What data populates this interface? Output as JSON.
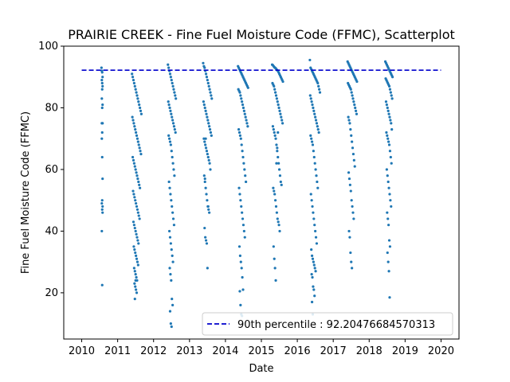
{
  "chart_data": {
    "type": "scatter",
    "title": "PRAIRIE CREEK - Fine Fuel Moisture Code (FFMC), Scatterplot",
    "xlabel": "Date",
    "ylabel": "Fine Fuel Moisture Code (FFMC)",
    "xlim": [
      2009.5,
      2020.5
    ],
    "ylim": [
      5,
      100
    ],
    "x_ticks": [
      "2010",
      "2011",
      "2012",
      "2013",
      "2014",
      "2015",
      "2016",
      "2017",
      "2018",
      "2019",
      "2020"
    ],
    "y_ticks": [
      20,
      40,
      60,
      80,
      100
    ],
    "grid": false,
    "legend_position": "lower-right",
    "point_color": "#1f77b4",
    "reference_line": {
      "label": "90th percentile : 92.20476684570313",
      "value": 92.20476684570313,
      "x_range": [
        2010,
        2020
      ],
      "color": "#0000cc",
      "style": "dashed"
    },
    "seasons": [
      {
        "year": 2010,
        "x": [
          2010.55,
          2010.56,
          2010.57,
          2010.58,
          2010.56,
          2010.57,
          2010.58,
          2010.57,
          2010.56,
          2010.58,
          2010.57,
          2010.56,
          2010.58,
          2010.57,
          2010.56,
          2010.57,
          2010.58,
          2010.57,
          2010.56,
          2010.58,
          2010.57,
          2010.58,
          2010.56,
          2010.57
        ],
        "y": [
          93,
          92,
          91.5,
          90,
          89,
          88,
          87,
          86,
          83,
          81,
          80,
          75,
          75,
          72,
          70,
          64,
          57,
          50,
          49,
          48,
          47,
          46,
          40,
          22.5
        ]
      },
      {
        "year": 2011,
        "x": [
          2011.4,
          2011.42,
          2011.44,
          2011.46,
          2011.48,
          2011.5,
          2011.52,
          2011.54,
          2011.56,
          2011.58,
          2011.6,
          2011.62,
          2011.64,
          2011.66,
          2011.41,
          2011.43,
          2011.45,
          2011.47,
          2011.49,
          2011.51,
          2011.53,
          2011.55,
          2011.57,
          2011.59,
          2011.61,
          2011.63,
          2011.65,
          2011.42,
          2011.44,
          2011.46,
          2011.48,
          2011.5,
          2011.52,
          2011.54,
          2011.56,
          2011.58,
          2011.6,
          2011.62,
          2011.43,
          2011.45,
          2011.47,
          2011.49,
          2011.51,
          2011.53,
          2011.55,
          2011.57,
          2011.59,
          2011.61,
          2011.44,
          2011.46,
          2011.48,
          2011.5,
          2011.52,
          2011.54,
          2011.56,
          2011.58,
          2011.45,
          2011.47,
          2011.49,
          2011.51,
          2011.53,
          2011.55,
          2011.57,
          2011.46,
          2011.48,
          2011.5,
          2011.52,
          2011.54,
          2011.47,
          2011.49,
          2011.51,
          2011.53,
          2011.48,
          2011.5
        ],
        "y": [
          91,
          90,
          89,
          88,
          87,
          86,
          85,
          84,
          83,
          82,
          81,
          80,
          79,
          78,
          77,
          76,
          75,
          74,
          73,
          72,
          71,
          70,
          69,
          68,
          67,
          66,
          65,
          64,
          63,
          62,
          61,
          60,
          59,
          58,
          57,
          56,
          55,
          54,
          53,
          52,
          51,
          50,
          49,
          48,
          47,
          46,
          45,
          44,
          43,
          42,
          41,
          40,
          39,
          38,
          37,
          36,
          35,
          34,
          33,
          32,
          31,
          30,
          29,
          28,
          27,
          26,
          25,
          24,
          23,
          22,
          21,
          20,
          18,
          24
        ]
      },
      {
        "year": 2012,
        "x": [
          2012.4,
          2012.42,
          2012.44,
          2012.46,
          2012.48,
          2012.5,
          2012.52,
          2012.54,
          2012.56,
          2012.58,
          2012.6,
          2012.62,
          2012.41,
          2012.43,
          2012.45,
          2012.47,
          2012.49,
          2012.51,
          2012.53,
          2012.55,
          2012.57,
          2012.59,
          2012.61,
          2012.42,
          2012.44,
          2012.46,
          2012.48,
          2012.5,
          2012.52,
          2012.54,
          2012.56,
          2012.58,
          2012.43,
          2012.45,
          2012.47,
          2012.49,
          2012.51,
          2012.53,
          2012.55,
          2012.57,
          2012.44,
          2012.46,
          2012.48,
          2012.5,
          2012.52,
          2012.54,
          2012.45,
          2012.47,
          2012.49,
          2012.51,
          2012.53,
          2012.46,
          2012.48,
          2012.5
        ],
        "y": [
          94,
          93,
          92,
          91,
          90,
          89,
          88,
          87,
          86,
          85,
          84,
          83,
          82,
          81,
          80,
          79,
          78,
          77,
          76,
          75,
          74,
          73,
          72,
          71,
          70,
          69,
          68,
          66,
          64,
          62,
          60,
          58,
          56,
          54,
          52,
          50,
          48,
          46,
          44,
          42,
          40,
          38,
          36,
          34,
          32,
          30,
          28,
          26,
          24,
          18,
          16,
          14,
          10,
          9
        ]
      },
      {
        "year": 2013,
        "x": [
          2013.38,
          2013.4,
          2013.42,
          2013.44,
          2013.46,
          2013.48,
          2013.5,
          2013.52,
          2013.54,
          2013.56,
          2013.58,
          2013.6,
          2013.62,
          2013.39,
          2013.41,
          2013.43,
          2013.45,
          2013.47,
          2013.49,
          2013.51,
          2013.53,
          2013.55,
          2013.57,
          2013.59,
          2013.61,
          2013.4,
          2013.42,
          2013.44,
          2013.46,
          2013.48,
          2013.5,
          2013.52,
          2013.54,
          2013.56,
          2013.58,
          2013.41,
          2013.43,
          2013.45,
          2013.47,
          2013.49,
          2013.51,
          2013.53,
          2013.55,
          2013.42,
          2013.44,
          2013.46,
          2013.48,
          2013.5,
          2013.52,
          2013.43,
          2013.45
        ],
        "y": [
          94.5,
          93.5,
          93,
          92,
          91,
          90,
          89,
          88,
          87,
          86,
          85,
          84,
          83,
          82,
          81,
          80,
          79,
          78,
          77,
          76,
          75,
          74,
          73,
          72,
          71,
          70,
          69,
          68,
          67,
          66,
          65,
          64,
          63,
          62,
          60,
          58,
          56,
          54,
          52,
          50,
          48,
          47,
          46,
          41,
          38,
          37,
          36,
          28,
          48,
          57,
          70
        ]
      },
      {
        "year": 2014,
        "x": [
          2014.35,
          2014.37,
          2014.39,
          2014.41,
          2014.43,
          2014.45,
          2014.47,
          2014.49,
          2014.51,
          2014.53,
          2014.55,
          2014.57,
          2014.59,
          2014.61,
          2014.63,
          2014.36,
          2014.38,
          2014.4,
          2014.42,
          2014.44,
          2014.46,
          2014.48,
          2014.5,
          2014.52,
          2014.54,
          2014.56,
          2014.58,
          2014.6,
          2014.62,
          2014.37,
          2014.39,
          2014.41,
          2014.43,
          2014.45,
          2014.47,
          2014.49,
          2014.51,
          2014.53,
          2014.55,
          2014.57,
          2014.38,
          2014.4,
          2014.42,
          2014.44,
          2014.46,
          2014.48,
          2014.5,
          2014.52,
          2014.54,
          2014.39,
          2014.41,
          2014.43,
          2014.45,
          2014.47,
          2014.49,
          2014.4,
          2014.42,
          2014.44,
          2014.46
        ],
        "y": [
          93.5,
          93,
          92.5,
          92,
          91.5,
          91,
          90.5,
          90,
          89.5,
          89,
          88.5,
          88,
          87.5,
          87,
          86.5,
          86,
          85.5,
          85,
          84,
          83,
          82,
          81,
          80,
          79,
          78,
          77,
          76,
          75,
          74,
          73,
          72,
          71,
          70,
          68,
          66,
          64,
          62,
          60,
          58,
          56,
          54,
          52,
          50,
          48,
          46,
          44,
          42,
          40,
          38,
          35,
          32,
          30,
          28,
          25,
          21,
          20.5,
          16,
          13,
          12.5
        ]
      },
      {
        "year": 2015,
        "x": [
          2015.3,
          2015.32,
          2015.34,
          2015.36,
          2015.38,
          2015.4,
          2015.42,
          2015.44,
          2015.46,
          2015.48,
          2015.5,
          2015.52,
          2015.54,
          2015.56,
          2015.58,
          2015.6,
          2015.31,
          2015.33,
          2015.35,
          2015.37,
          2015.39,
          2015.41,
          2015.43,
          2015.45,
          2015.47,
          2015.49,
          2015.51,
          2015.53,
          2015.55,
          2015.57,
          2015.59,
          2015.32,
          2015.34,
          2015.36,
          2015.38,
          2015.4,
          2015.42,
          2015.44,
          2015.46,
          2015.48,
          2015.5,
          2015.52,
          2015.54,
          2015.56,
          2015.33,
          2015.35,
          2015.37,
          2015.39,
          2015.41,
          2015.43,
          2015.45,
          2015.47,
          2015.49,
          2015.51,
          2015.34,
          2015.36,
          2015.38,
          2015.4,
          2015.42,
          2015.44,
          2015.46
        ],
        "y": [
          94,
          93.8,
          93.5,
          93.2,
          93,
          92.8,
          92.5,
          92.2,
          92,
          91.5,
          91,
          90.5,
          90,
          89.5,
          89,
          88.5,
          88,
          87.5,
          87,
          86,
          85,
          84,
          83,
          82,
          81,
          80,
          79,
          78,
          77,
          76,
          75,
          74,
          73,
          72,
          71,
          70,
          68,
          66,
          64,
          62,
          60,
          58,
          56,
          55,
          54,
          53,
          52,
          50,
          48,
          46,
          44,
          43,
          42,
          40,
          35,
          31,
          28,
          24,
          62,
          67,
          72
        ]
      },
      {
        "year": 2016,
        "x": [
          2016.35,
          2016.37,
          2016.39,
          2016.41,
          2016.43,
          2016.45,
          2016.47,
          2016.49,
          2016.51,
          2016.53,
          2016.55,
          2016.57,
          2016.59,
          2016.61,
          2016.63,
          2016.36,
          2016.38,
          2016.4,
          2016.42,
          2016.44,
          2016.46,
          2016.48,
          2016.5,
          2016.52,
          2016.54,
          2016.56,
          2016.58,
          2016.6,
          2016.37,
          2016.39,
          2016.41,
          2016.43,
          2016.45,
          2016.47,
          2016.49,
          2016.51,
          2016.53,
          2016.55,
          2016.57,
          2016.38,
          2016.4,
          2016.42,
          2016.44,
          2016.46,
          2016.48,
          2016.5,
          2016.52,
          2016.54,
          2016.39,
          2016.41,
          2016.43,
          2016.45,
          2016.47,
          2016.49,
          2016.51,
          2016.4,
          2016.42,
          2016.44,
          2016.46,
          2016.48,
          2016.41,
          2016.43
        ],
        "y": [
          95.5,
          93,
          92.5,
          92,
          91.5,
          91,
          90.5,
          90,
          89.5,
          89,
          88.5,
          88,
          87,
          86,
          85,
          84,
          83,
          82,
          81,
          80,
          79,
          78,
          77,
          76,
          75,
          74,
          73,
          72,
          71,
          70,
          69,
          68,
          66,
          64,
          62,
          60,
          58,
          56,
          54,
          52,
          50,
          48,
          46,
          44,
          42,
          40,
          38,
          36,
          34,
          32,
          31,
          30,
          29,
          28,
          27,
          26,
          25,
          22,
          21,
          19,
          17,
          13
        ]
      },
      {
        "year": 2017,
        "x": [
          2017.4,
          2017.42,
          2017.44,
          2017.46,
          2017.48,
          2017.5,
          2017.52,
          2017.54,
          2017.56,
          2017.58,
          2017.6,
          2017.62,
          2017.64,
          2017.66,
          2017.41,
          2017.43,
          2017.45,
          2017.47,
          2017.49,
          2017.51,
          2017.53,
          2017.55,
          2017.57,
          2017.59,
          2017.61,
          2017.63,
          2017.65,
          2017.42,
          2017.44,
          2017.46,
          2017.48,
          2017.5,
          2017.52,
          2017.54,
          2017.56,
          2017.58,
          2017.6,
          2017.43,
          2017.45,
          2017.47,
          2017.49,
          2017.51,
          2017.53,
          2017.55,
          2017.57,
          2017.44,
          2017.46,
          2017.48,
          2017.5,
          2017.52
        ],
        "y": [
          95,
          94.5,
          94,
          93.5,
          93,
          92.5,
          92,
          91.5,
          91,
          90.5,
          90,
          89.5,
          89,
          88.5,
          88,
          87.5,
          87,
          86.5,
          86,
          85,
          84,
          83,
          82,
          81,
          80,
          79,
          78,
          77,
          76,
          75,
          73,
          71,
          69,
          67,
          65,
          63,
          61,
          59,
          57,
          55,
          53,
          50,
          48,
          46,
          44,
          40,
          38,
          33,
          30,
          28
        ]
      },
      {
        "year": 2018,
        "x": [
          2018.45,
          2018.47,
          2018.49,
          2018.51,
          2018.53,
          2018.55,
          2018.57,
          2018.59,
          2018.61,
          2018.63,
          2018.65,
          2018.46,
          2018.48,
          2018.5,
          2018.52,
          2018.54,
          2018.56,
          2018.58,
          2018.6,
          2018.62,
          2018.64,
          2018.47,
          2018.49,
          2018.51,
          2018.53,
          2018.55,
          2018.57,
          2018.59,
          2018.61,
          2018.63,
          2018.48,
          2018.5,
          2018.52,
          2018.54,
          2018.56,
          2018.58,
          2018.6,
          2018.62,
          2018.49,
          2018.51,
          2018.53,
          2018.55,
          2018.57,
          2018.59,
          2018.61,
          2018.5,
          2018.52,
          2018.54,
          2018.56,
          2018.58,
          2018.51,
          2018.53,
          2018.55,
          2018.57
        ],
        "y": [
          95,
          94.5,
          94,
          93.5,
          93,
          92.5,
          92,
          91.5,
          91,
          90.5,
          90,
          89.5,
          89,
          88.5,
          88,
          87.5,
          87,
          86,
          85,
          84,
          83,
          82,
          81,
          80,
          79,
          78,
          77,
          76,
          75,
          73,
          72,
          71,
          70,
          69,
          68,
          66,
          64,
          62,
          60,
          58,
          56,
          54,
          52,
          50,
          48,
          46,
          44,
          42,
          37,
          35,
          33,
          30,
          27,
          18.5
        ]
      }
    ]
  }
}
